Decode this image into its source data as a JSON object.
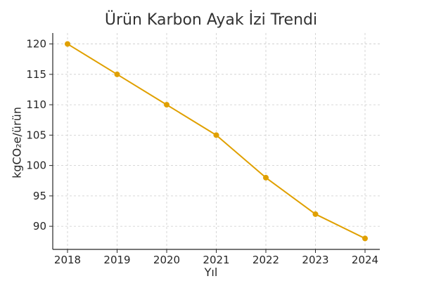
{
  "chart_data": {
    "type": "line",
    "title": "Ürün Karbon Ayak İzi Trendi",
    "xlabel": "Yıl",
    "ylabel": "kgCO₂e/ürün",
    "x": [
      "2018",
      "2019",
      "2020",
      "2021",
      "2022",
      "2023",
      "2024"
    ],
    "series": [
      {
        "values": [
          120,
          115,
          110,
          105,
          98,
          92,
          88
        ],
        "color": "#e0a000"
      }
    ],
    "yticks": [
      90,
      95,
      100,
      105,
      110,
      115,
      120
    ],
    "ylim": [
      86.2,
      121.8
    ],
    "grid": true,
    "legend": false
  }
}
